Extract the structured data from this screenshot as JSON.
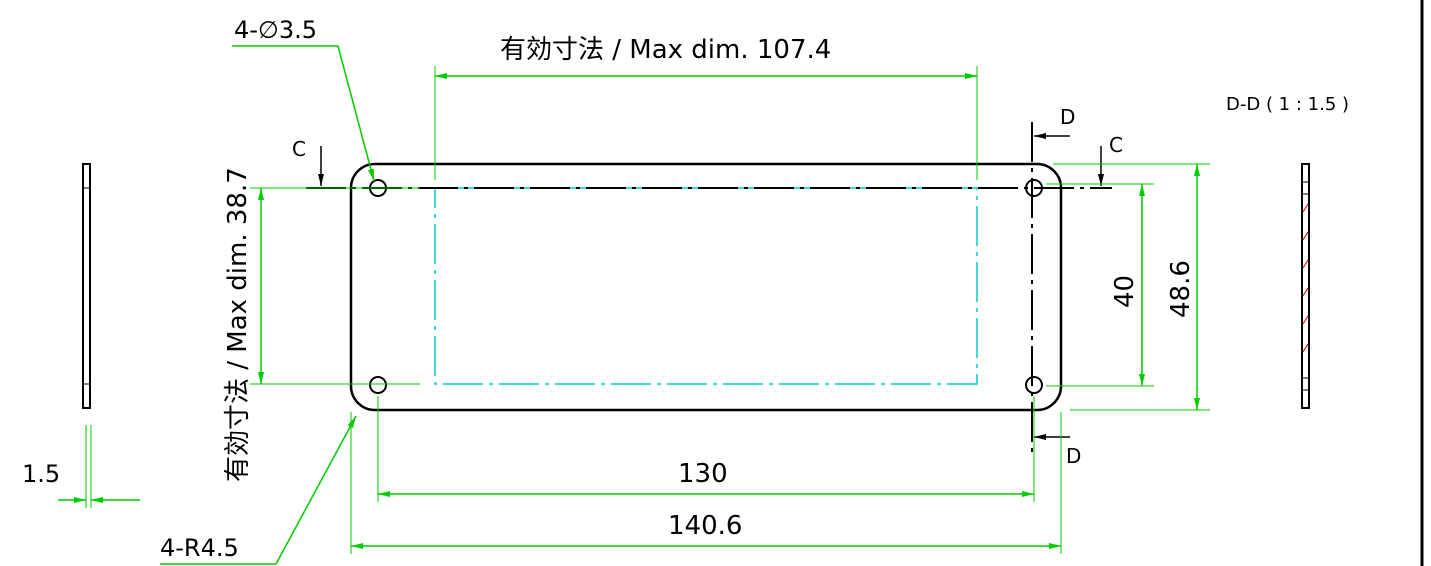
{
  "colors": {
    "outline": "#000000",
    "dimension": "#00cc00",
    "centerline": "#00cccc",
    "hatch": "#cc0000",
    "frame": "#000000"
  },
  "labels": {
    "hole_note": "4-∅3.5",
    "corner_radius_note": "4-R4.5",
    "max_width": "有効寸法 / Max dim. 107.4",
    "max_height": "有効寸法 / Max dim. 38.7",
    "hole_pitch_x": "130",
    "overall_width": "140.6",
    "hole_pitch_y": "40",
    "overall_height": "48.6",
    "thickness": "1.5",
    "section_c_left": "C",
    "section_c_right": "C",
    "section_d_top": "D",
    "section_d_bottom": "D",
    "section_view_title": "D-D ( 1 : 1.5 )"
  }
}
